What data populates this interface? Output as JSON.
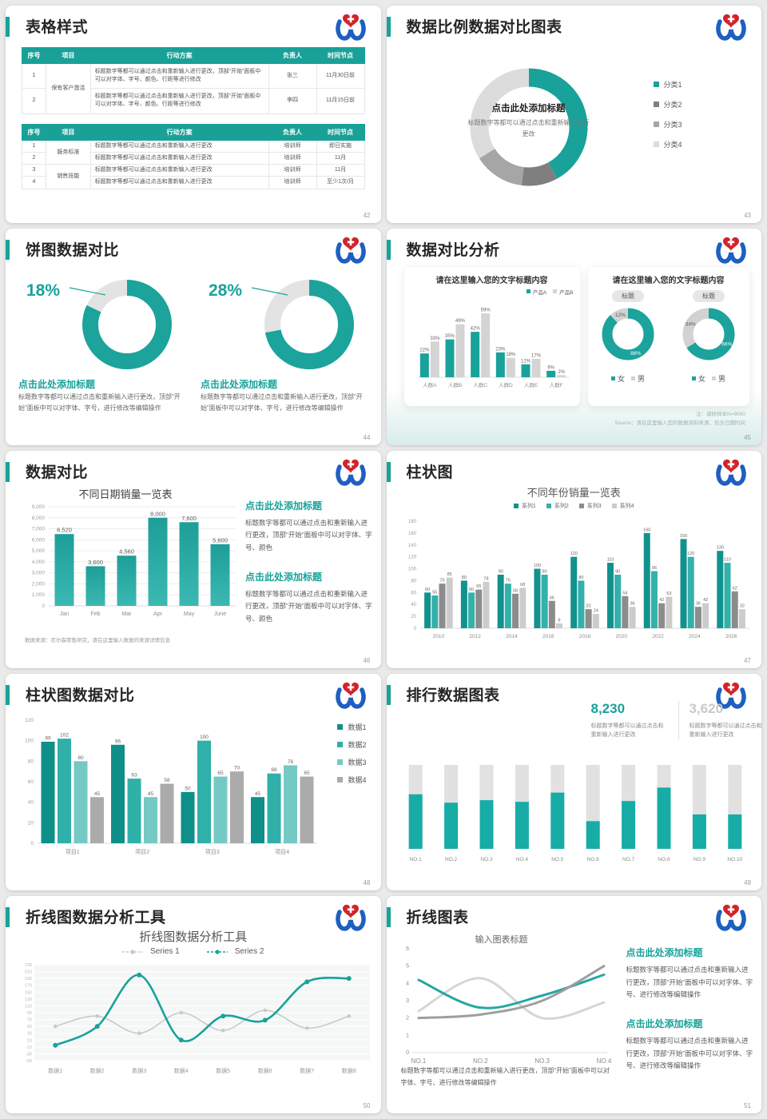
{
  "page_background": "#e9eaea",
  "colors": {
    "teal": "#18A29A",
    "teal_dark": "#0F8F89",
    "teal_mid": "#2FB0A9",
    "teal_light": "#74C9C4",
    "gray_dark": "#7F7F7F",
    "gray": "#A6A6A6",
    "gray_mid": "#C9C9C9",
    "gray_light": "#DCDCDC",
    "logo_blue": "#1E5FC2",
    "logo_red": "#D2232A"
  },
  "slides": {
    "s42": {
      "title": "表格样式",
      "page": "42",
      "headers": [
        "序号",
        "项目",
        "行动方案",
        "负责人",
        "时间节点"
      ],
      "table1": {
        "groups": [
          {
            "project": "保有客户激活",
            "rows": [
              {
                "no": "1",
                "action": "标题数字等都可以通过点击和重新输入进行更改，顶部“开始”面板中可以对字体、字号、颜色、行距等进行修改",
                "owner": "张三",
                "time": "11月30日前"
              },
              {
                "no": "2",
                "action": "标题数字等都可以通过点击和重新输入进行更改，顶部“开始”面板中可以对字体、字号、颜色、行距等进行修改",
                "owner": "李四",
                "time": "11月15日前"
              }
            ]
          }
        ]
      },
      "table2": {
        "groups": [
          {
            "project": "服务标准",
            "rows": [
              {
                "no": "1",
                "action": "标题数字等都可以通过点击和重新输入进行更改",
                "owner": "培训师",
                "time": "即日实施"
              },
              {
                "no": "2",
                "action": "标题数字等都可以通过点击和重新输入进行更改",
                "owner": "培训师",
                "time": "11月"
              }
            ]
          },
          {
            "project": "销售技能",
            "rows": [
              {
                "no": "3",
                "action": "标题数字等都可以通过点击和重新输入进行更改",
                "owner": "培训师",
                "time": "11月"
              },
              {
                "no": "4",
                "action": "标题数字等都可以通过点击和重新输入进行更改",
                "owner": "培训师",
                "time": "至少1次/月"
              }
            ]
          }
        ]
      }
    },
    "s43": {
      "title": "数据比例数据对比图表",
      "page": "43",
      "center_title": "点击此处添加标题",
      "center_sub": "标题数字等都可以通过点击和重新输入进行更改",
      "chart_data": {
        "type": "pie",
        "slices": [
          {
            "label": "分类1",
            "value": 42,
            "color": "#18A29A"
          },
          {
            "label": "分类2",
            "value": 10,
            "color": "#7F7F7F"
          },
          {
            "label": "分类3",
            "value": 14,
            "color": "#A6A6A6"
          },
          {
            "label": "分类4",
            "value": 34,
            "color": "#DCDCDC"
          }
        ]
      }
    },
    "s44": {
      "title": "饼图数据对比",
      "page": "44",
      "block_title": "点击此处添加标题",
      "block_body": "标题数字等都可以通过点击和重新输入进行更改，顶部“开始”面板中可以对字体、字号，进行修改等编辑操作",
      "chart_data": [
        {
          "type": "pie",
          "pct_label": "18%",
          "gray": 18,
          "teal": 82
        },
        {
          "type": "pie",
          "pct_label": "28%",
          "gray": 28,
          "teal": 72
        }
      ]
    },
    "s45": {
      "title": "数据对比分析",
      "page": "45",
      "note1": "注：调研样本N=9000",
      "note2": "Source：请在这里输入您的数据资料来源，包含日期时间",
      "left_card": {
        "card_title": "请在这里输入您的文字标题内容",
        "chart_data": {
          "type": "bar",
          "unit": "%",
          "categories": [
            "人群A",
            "人群B",
            "人群C",
            "人群D",
            "人群E",
            "人群F"
          ],
          "series": [
            {
              "name": "产品A",
              "color": "#18A29A",
              "values": [
                22,
                35,
                42,
                23,
                12,
                6
              ]
            },
            {
              "name": "产品B",
              "color": "#D4D4D4",
              "values": [
                33,
                49,
                59,
                18,
                17,
                2
              ]
            }
          ]
        }
      },
      "right_card": {
        "card_title": "请在这里输入您的文字标题内容",
        "badge": "标题",
        "legend": [
          "女",
          "男"
        ],
        "chart_data": [
          {
            "type": "pie",
            "female_pct": 88,
            "male_pct": 12
          },
          {
            "type": "pie",
            "female_pct": 66,
            "male_pct": 34
          }
        ]
      }
    },
    "s46": {
      "title": "数据对比",
      "page": "46",
      "chart_data": {
        "type": "bar",
        "title": "不同日期销量一览表",
        "categories": [
          "Jan",
          "Feb",
          "Mar",
          "Apr",
          "May",
          "June"
        ],
        "values": [
          6520,
          3600,
          4560,
          8000,
          7600,
          5600
        ],
        "ymax": 9000,
        "ystep": 1000,
        "color": "#23A8A2"
      },
      "source": "数据来源：尼尔森零售研究，请在这里输入数据的来源详情信息",
      "blocks": [
        {
          "title": "点击此处添加标题",
          "body": "标题数字等都可以通过点击和重新输入进行更改，顶部“开始”面板中可以对字体、字号、颜色"
        },
        {
          "title": "点击此处添加标题",
          "body": "标题数字等都可以通过点击和重新输入进行更改，顶部“开始”面板中可以对字体、字号、颜色"
        }
      ]
    },
    "s47": {
      "title": "柱状图",
      "page": "47",
      "chart_data": {
        "type": "bar",
        "title": "不同年份销量一览表",
        "categories": [
          "2010",
          "2012",
          "2014",
          "2016",
          "2018",
          "2020",
          "2022",
          "2024",
          "2026"
        ],
        "series": [
          {
            "name": "系列1",
            "color": "#12928D",
            "values": [
              60,
              80,
              90,
              100,
              120,
              110,
              160,
              150,
              130
            ]
          },
          {
            "name": "系列2",
            "color": "#33B1AA",
            "values": [
              55,
              60,
              75,
              90,
              80,
              90,
              96,
              120,
              110
            ]
          },
          {
            "name": "系列3",
            "color": "#8C8C8C",
            "values": [
              75,
              65,
              58,
              46,
              32,
              54,
              42,
              36,
              62
            ]
          },
          {
            "name": "系列4",
            "color": "#CCCCCC",
            "values": [
              85,
              78,
              68,
              8,
              24,
              36,
              53,
              42,
              32
            ]
          }
        ],
        "ymax": 180,
        "ystep": 20
      }
    },
    "s48": {
      "title": "柱状图数据对比",
      "page": "48",
      "chart_data": {
        "type": "bar",
        "categories": [
          "项目1",
          "项目2",
          "项目3",
          "项目4"
        ],
        "series": [
          {
            "name": "数据1",
            "color": "#0F8F89",
            "values": [
              99,
              96,
              50,
              45
            ]
          },
          {
            "name": "数据2",
            "color": "#2FB0A9",
            "values": [
              102,
              63,
              100,
              68
            ]
          },
          {
            "name": "数据3",
            "color": "#74C9C4",
            "values": [
              80,
              45,
              65,
              76
            ]
          },
          {
            "name": "数据4",
            "color": "#ABABAB",
            "values": [
              45,
              58,
              70,
              65
            ]
          }
        ],
        "ymax": 120,
        "ystep": 20
      }
    },
    "s49": {
      "title": "排行数据图表",
      "page": "49",
      "stats": [
        {
          "value": "8,230",
          "color": "#18A29A"
        },
        {
          "value": "3,620",
          "color": "#C9C9C9"
        }
      ],
      "stat_caption": "标题数字等都可以通过点击和重新输入进行更改",
      "chart_data": {
        "type": "bar",
        "categories": [
          "NO.1",
          "NO.2",
          "NO.3",
          "NO.4",
          "NO.5",
          "NO.6",
          "NO.7",
          "NO.8",
          "NO.9",
          "NO.10"
        ],
        "teal_percent": [
          65,
          55,
          58,
          56,
          67,
          33,
          57,
          73,
          41,
          41
        ],
        "fill": "#17ACA6",
        "track": "#E1E1E1"
      }
    },
    "s50": {
      "title": "折线图数据分析工具",
      "page": "50",
      "chart_data": {
        "type": "line",
        "title": "折线图数据分析工具",
        "categories": [
          "数据1",
          "数据2",
          "数据3",
          "数据4",
          "数据5",
          "数据6",
          "数据7",
          "数据8"
        ],
        "series": [
          {
            "name": "Series 1",
            "color": "#C9C9C9",
            "values": [
              50,
              80,
              30,
              90,
              38,
              97,
              45,
              80
            ]
          },
          {
            "name": "Series 2",
            "color": "#18A29A",
            "values": [
              -5,
              50,
              200,
              10,
              80,
              68,
              180,
              190
            ]
          }
        ],
        "ymin": -50,
        "ymax": 230,
        "ystep": 20
      }
    },
    "s51": {
      "title": "折线图表",
      "page": "51",
      "chart_data": {
        "type": "line",
        "title": "输入图表标题",
        "categories": [
          "NO.1",
          "NO.2",
          "NO.3",
          "NO.4"
        ],
        "series": [
          {
            "name": "line-teal",
            "color": "#23A7A1",
            "values": [
              4.2,
              2.6,
              3.3,
              4.5
            ]
          },
          {
            "name": "line-dark-gray",
            "color": "#9E9E9E",
            "values": [
              2.0,
              2.2,
              3.0,
              5.0
            ]
          },
          {
            "name": "line-light-gray",
            "color": "#D6D6D6",
            "values": [
              2.4,
              4.3,
              2.0,
              2.9
            ]
          }
        ],
        "ymin": 0,
        "ymax": 6,
        "ystep": 1
      },
      "caption": "标题数字等都可以通过点击和重新输入进行更改，顶部“开始”面板中可以对字体、字号、进行修改等编辑操作",
      "blocks": [
        {
          "title": "点击此处添加标题",
          "body": "标题数字等都可以通过点击和重新输入进行更改，顶部“开始”面板中可以对字体、字号、进行修改等编辑操作"
        },
        {
          "title": "点击此处添加标题",
          "body": "标题数字等都可以通过点击和重新输入进行更改，顶部“开始”面板中可以对字体、字号、进行修改等编辑操作"
        }
      ]
    }
  }
}
